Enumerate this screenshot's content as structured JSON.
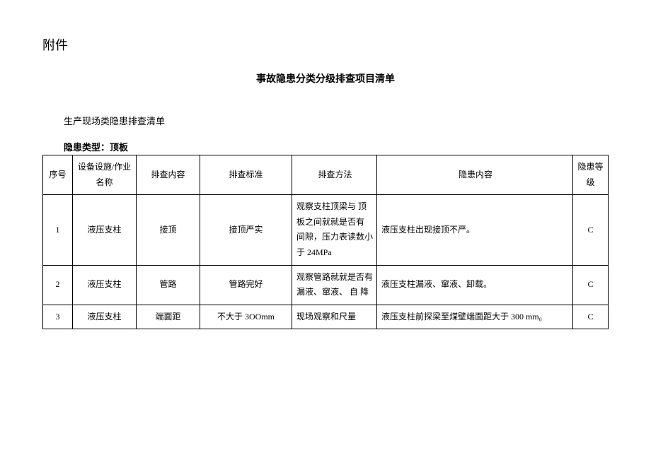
{
  "attachment_label": "附件",
  "doc_title": "事故隐患分类分级排查项目清单",
  "section_title": "生产现场类隐患排查清单",
  "hazard_type_label": "隐患类型：顶板",
  "table": {
    "headers": {
      "seq": "序号",
      "equip": "设备设施/作业名称",
      "content": "排查内容",
      "standard": "排查标准",
      "method": "排查方法",
      "hazard": "隐患内容",
      "level": "隐患等级"
    },
    "rows": [
      {
        "seq": "1",
        "equip": "液压支柱",
        "content": "接顶",
        "standard": "接顶严实",
        "method": "观察支柱顶梁与\n顶板之间就就是否有\n间隙，压力表读数小于 24MPa",
        "hazard": "液压支柱出现接顶不严。",
        "level": "C"
      },
      {
        "seq": "2",
        "equip": "液压支柱",
        "content": "管路",
        "standard": "管路完好",
        "method": "观察管路就就是否有漏液、窜液、\n自\n降",
        "hazard": "液压支柱漏液、窜液、卸载。",
        "level": "C"
      },
      {
        "seq": "3",
        "equip": "液压支柱",
        "content": "端面距",
        "standard": "不大于 3OOmm",
        "method": "现场观察和尺量",
        "hazard": "液压支柱前探梁至煤壁端面距大于 300 mm₀",
        "level": "C"
      }
    ]
  }
}
